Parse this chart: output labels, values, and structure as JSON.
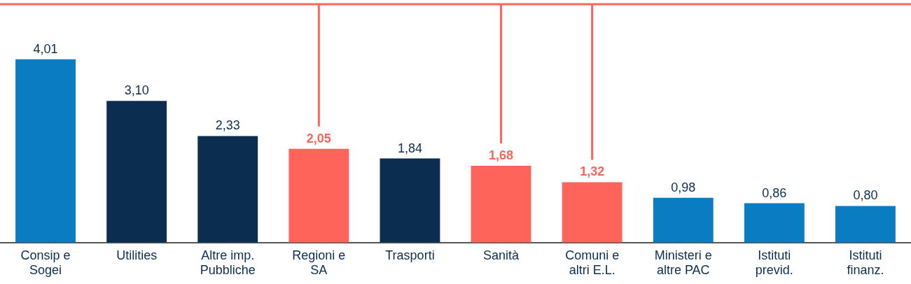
{
  "chart_data": {
    "type": "bar",
    "categories": [
      "Consip e Sogei",
      "Utilities",
      "Altre imp. Pubbliche",
      "Regioni e SA",
      "Trasporti",
      "Sanità",
      "Comuni e altri E.L.",
      "Ministeri e altre PAC",
      "Istituti previd.",
      "Istituti finanz."
    ],
    "values": [
      4.01,
      3.1,
      2.33,
      2.05,
      1.84,
      1.68,
      1.32,
      0.98,
      0.86,
      0.8
    ],
    "colors": [
      "#0a7cc1",
      "#0b2d50",
      "#0b2d50",
      "#ff645a",
      "#0b2d50",
      "#ff645a",
      "#ff645a",
      "#0a7cc1",
      "#0a7cc1",
      "#0a7cc1"
    ],
    "value_labels": [
      "4,01",
      "3,10",
      "2,33",
      "2,05",
      "1,84",
      "1,68",
      "1,32",
      "0,98",
      "0,86",
      "0,80"
    ],
    "tick_labels": "x",
    "legend": false
  }
}
